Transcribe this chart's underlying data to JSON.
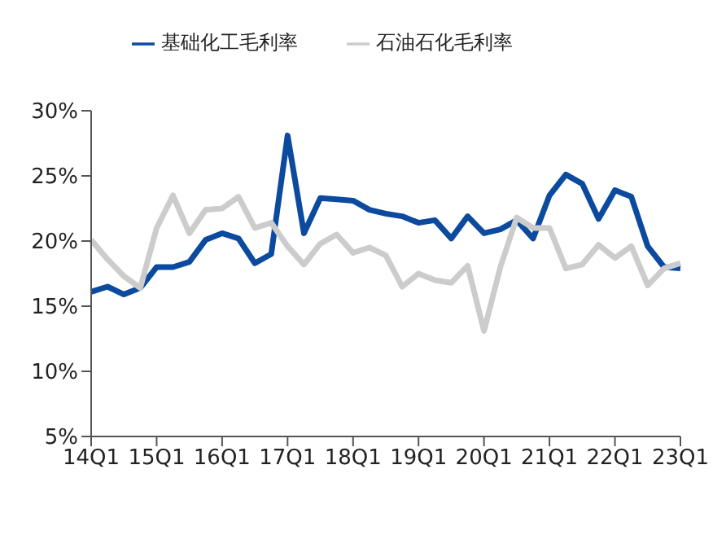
{
  "chart_data": {
    "type": "line",
    "categories": [
      "14Q1",
      null,
      null,
      null,
      "15Q1",
      null,
      null,
      null,
      "16Q1",
      null,
      null,
      null,
      "17Q1",
      null,
      null,
      null,
      "18Q1",
      null,
      null,
      null,
      "19Q1",
      null,
      null,
      null,
      "20Q1",
      null,
      null,
      null,
      "21Q1",
      null,
      null,
      null,
      "22Q1",
      null,
      null,
      null,
      "23Q1"
    ],
    "series": [
      {
        "name": "基础化工毛利率",
        "color": "#0b4a9e",
        "values": [
          16.1,
          16.5,
          15.9,
          16.4,
          18.0,
          18.0,
          18.4,
          20.1,
          20.6,
          20.2,
          18.3,
          19.0,
          28.1,
          20.6,
          23.3,
          23.2,
          23.1,
          22.4,
          22.1,
          21.9,
          21.4,
          21.6,
          20.2,
          21.9,
          20.6,
          20.9,
          21.6,
          20.2,
          23.5,
          25.1,
          24.4,
          21.7,
          23.9,
          23.4,
          19.6,
          18.0,
          17.9
        ]
      },
      {
        "name": "石油石化毛利率",
        "color": "#cccccc",
        "values": [
          20.1,
          18.6,
          17.3,
          16.4,
          21.0,
          23.5,
          20.6,
          22.4,
          22.5,
          23.4,
          21.0,
          21.4,
          19.6,
          18.2,
          19.8,
          20.5,
          19.1,
          19.5,
          18.9,
          16.5,
          17.5,
          17.0,
          16.8,
          18.1,
          13.1,
          18.0,
          21.8,
          21.0,
          21.0,
          17.9,
          18.2,
          19.7,
          18.7,
          19.6,
          16.6,
          17.9,
          18.3
        ]
      }
    ],
    "ylim": [
      5,
      30
    ],
    "yticks": [
      {
        "value": 5,
        "label": "5%"
      },
      {
        "value": 10,
        "label": "10%"
      },
      {
        "value": 15,
        "label": "15%"
      },
      {
        "value": 20,
        "label": "20%"
      },
      {
        "value": 25,
        "label": "25%"
      },
      {
        "value": 30,
        "label": "30%"
      }
    ],
    "grid": false,
    "legend": "top",
    "marker": "none",
    "line_style": "solid"
  }
}
